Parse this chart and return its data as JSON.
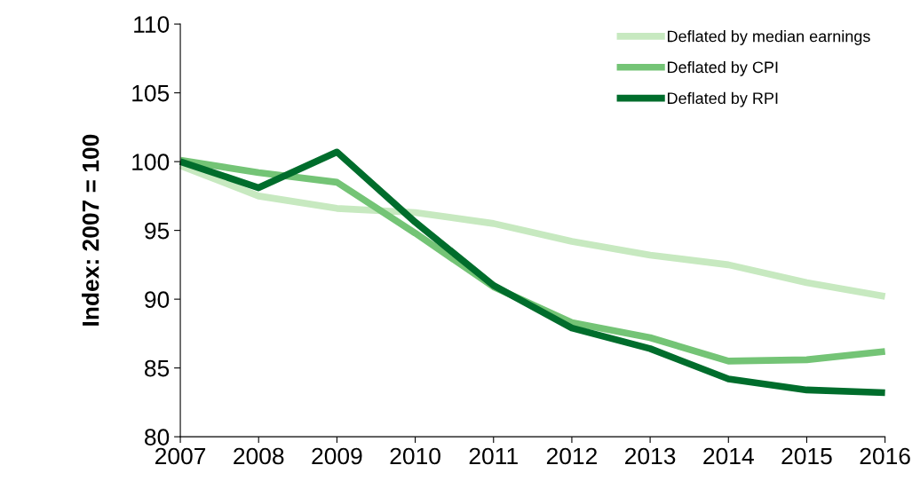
{
  "chart_data": {
    "type": "line",
    "ylabel": "Index: 2007 = 100",
    "x": [
      2007,
      2008,
      2009,
      2010,
      2011,
      2012,
      2013,
      2014,
      2015,
      2016
    ],
    "series": [
      {
        "name": "Deflated by median earnings",
        "color": "#c7e9c0",
        "values": [
          99.7,
          97.5,
          96.6,
          96.3,
          95.5,
          94.2,
          93.2,
          92.5,
          91.2,
          90.2
        ]
      },
      {
        "name": "Deflated by CPI",
        "color": "#74c476",
        "values": [
          100.1,
          99.2,
          98.5,
          94.8,
          90.9,
          88.3,
          87.2,
          85.5,
          85.6,
          86.2
        ]
      },
      {
        "name": "Deflated by RPI",
        "color": "#006d2c",
        "values": [
          100.0,
          98.1,
          100.7,
          95.6,
          91.0,
          87.9,
          86.4,
          84.2,
          83.4,
          83.2
        ]
      }
    ],
    "xlim": [
      2007,
      2016
    ],
    "xticks": [
      2007,
      2008,
      2009,
      2010,
      2011,
      2012,
      2013,
      2014,
      2015,
      2016
    ],
    "ylim": [
      80,
      110
    ],
    "yticks": [
      80,
      85,
      90,
      95,
      100,
      105,
      110
    ],
    "grid": false,
    "legend": "top right",
    "marker": "none",
    "line_style": "solid"
  }
}
